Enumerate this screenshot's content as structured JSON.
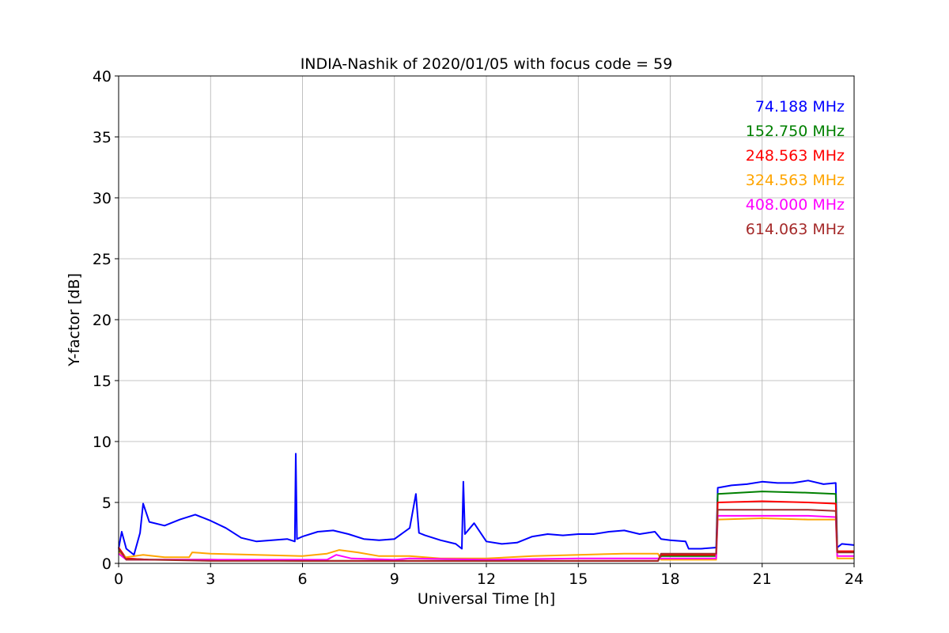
{
  "chart_data": {
    "type": "line",
    "title": "INDIA-Nashik of 2020/01/05 with focus code = 59",
    "xlabel": "Universal Time [h]",
    "ylabel": "Y-factor [dB]",
    "xlim": [
      0,
      24
    ],
    "ylim": [
      0,
      40
    ],
    "xticks": [
      0,
      3,
      6,
      9,
      12,
      15,
      18,
      21,
      24
    ],
    "yticks": [
      0,
      5,
      10,
      15,
      20,
      25,
      30,
      35,
      40
    ],
    "grid": true,
    "legend": "top-right",
    "series": [
      {
        "name": "74.188 MHz",
        "color": "#0000ff",
        "points": [
          [
            0,
            1.2
          ],
          [
            0.1,
            2.6
          ],
          [
            0.25,
            1.2
          ],
          [
            0.5,
            0.7
          ],
          [
            0.7,
            2.5
          ],
          [
            0.8,
            4.9
          ],
          [
            1.0,
            3.4
          ],
          [
            1.5,
            3.1
          ],
          [
            2.0,
            3.6
          ],
          [
            2.5,
            4.0
          ],
          [
            3.0,
            3.5
          ],
          [
            3.5,
            2.9
          ],
          [
            4.0,
            2.1
          ],
          [
            4.5,
            1.8
          ],
          [
            5.0,
            1.9
          ],
          [
            5.5,
            2.0
          ],
          [
            5.75,
            1.8
          ],
          [
            5.78,
            9.0
          ],
          [
            5.82,
            2.0
          ],
          [
            6.0,
            2.2
          ],
          [
            6.5,
            2.6
          ],
          [
            7.0,
            2.7
          ],
          [
            7.5,
            2.4
          ],
          [
            8.0,
            2.0
          ],
          [
            8.5,
            1.9
          ],
          [
            9.0,
            2.0
          ],
          [
            9.5,
            2.9
          ],
          [
            9.7,
            5.7
          ],
          [
            9.8,
            2.5
          ],
          [
            10.0,
            2.3
          ],
          [
            10.5,
            1.9
          ],
          [
            11.0,
            1.6
          ],
          [
            11.2,
            1.2
          ],
          [
            11.25,
            6.7
          ],
          [
            11.3,
            2.4
          ],
          [
            11.6,
            3.3
          ],
          [
            12.0,
            1.8
          ],
          [
            12.5,
            1.6
          ],
          [
            13.0,
            1.7
          ],
          [
            13.5,
            2.2
          ],
          [
            14.0,
            2.4
          ],
          [
            14.5,
            2.3
          ],
          [
            15.0,
            2.4
          ],
          [
            15.5,
            2.4
          ],
          [
            16.0,
            2.6
          ],
          [
            16.5,
            2.7
          ],
          [
            17.0,
            2.4
          ],
          [
            17.5,
            2.6
          ],
          [
            17.7,
            2.0
          ],
          [
            18.0,
            1.9
          ],
          [
            18.5,
            1.8
          ],
          [
            18.6,
            1.2
          ],
          [
            19.0,
            1.2
          ],
          [
            19.5,
            1.3
          ],
          [
            19.55,
            6.2
          ],
          [
            20.0,
            6.4
          ],
          [
            20.5,
            6.5
          ],
          [
            21.0,
            6.7
          ],
          [
            21.5,
            6.6
          ],
          [
            22.0,
            6.6
          ],
          [
            22.5,
            6.8
          ],
          [
            23.0,
            6.5
          ],
          [
            23.4,
            6.6
          ],
          [
            23.45,
            1.3
          ],
          [
            23.6,
            1.6
          ],
          [
            24.0,
            1.5
          ]
        ]
      },
      {
        "name": "152.750 MHz",
        "color": "#008000",
        "points": [
          [
            0,
            1.0
          ],
          [
            0.25,
            0.4
          ],
          [
            1.0,
            0.3
          ],
          [
            3.0,
            0.3
          ],
          [
            6.0,
            0.2
          ],
          [
            9.0,
            0.2
          ],
          [
            12.0,
            0.2
          ],
          [
            15.0,
            0.2
          ],
          [
            17.6,
            0.2
          ],
          [
            17.7,
            0.6
          ],
          [
            18.5,
            0.6
          ],
          [
            19.5,
            0.6
          ],
          [
            19.55,
            5.7
          ],
          [
            21.0,
            5.9
          ],
          [
            22.5,
            5.8
          ],
          [
            23.4,
            5.7
          ],
          [
            23.45,
            0.9
          ],
          [
            24.0,
            0.9
          ]
        ]
      },
      {
        "name": "248.563 MHz",
        "color": "#ff0000",
        "points": [
          [
            0,
            1.3
          ],
          [
            0.25,
            0.4
          ],
          [
            1.0,
            0.3
          ],
          [
            3.0,
            0.3
          ],
          [
            6.0,
            0.2
          ],
          [
            9.0,
            0.2
          ],
          [
            12.0,
            0.2
          ],
          [
            15.0,
            0.2
          ],
          [
            17.6,
            0.2
          ],
          [
            17.7,
            0.7
          ],
          [
            19.5,
            0.7
          ],
          [
            19.55,
            5.0
          ],
          [
            21.0,
            5.1
          ],
          [
            22.5,
            5.0
          ],
          [
            23.4,
            4.9
          ],
          [
            23.45,
            1.0
          ],
          [
            24.0,
            1.0
          ]
        ]
      },
      {
        "name": "324.563 MHz",
        "color": "#ffa500",
        "points": [
          [
            0,
            0.9
          ],
          [
            0.25,
            0.5
          ],
          [
            0.8,
            0.7
          ],
          [
            1.5,
            0.5
          ],
          [
            2.3,
            0.5
          ],
          [
            2.4,
            0.9
          ],
          [
            3.0,
            0.8
          ],
          [
            4.5,
            0.7
          ],
          [
            6.0,
            0.6
          ],
          [
            6.8,
            0.8
          ],
          [
            7.2,
            1.1
          ],
          [
            7.8,
            0.9
          ],
          [
            8.5,
            0.6
          ],
          [
            9.5,
            0.6
          ],
          [
            10.5,
            0.4
          ],
          [
            12.0,
            0.4
          ],
          [
            13.5,
            0.6
          ],
          [
            15.0,
            0.7
          ],
          [
            16.5,
            0.8
          ],
          [
            17.6,
            0.8
          ],
          [
            17.7,
            0.3
          ],
          [
            19.5,
            0.3
          ],
          [
            19.55,
            3.6
          ],
          [
            21.0,
            3.7
          ],
          [
            22.5,
            3.6
          ],
          [
            23.4,
            3.6
          ],
          [
            23.45,
            0.4
          ],
          [
            24.0,
            0.4
          ]
        ]
      },
      {
        "name": "408.000 MHz",
        "color": "#ff00ff",
        "points": [
          [
            0,
            0.8
          ],
          [
            0.25,
            0.3
          ],
          [
            1.0,
            0.3
          ],
          [
            3.0,
            0.3
          ],
          [
            6.0,
            0.3
          ],
          [
            6.8,
            0.3
          ],
          [
            7.1,
            0.7
          ],
          [
            7.6,
            0.4
          ],
          [
            9.0,
            0.3
          ],
          [
            9.5,
            0.4
          ],
          [
            12.0,
            0.3
          ],
          [
            15.0,
            0.4
          ],
          [
            17.6,
            0.4
          ],
          [
            17.7,
            0.4
          ],
          [
            19.5,
            0.4
          ],
          [
            19.55,
            3.9
          ],
          [
            21.0,
            3.9
          ],
          [
            22.5,
            3.9
          ],
          [
            23.4,
            3.8
          ],
          [
            23.45,
            0.6
          ],
          [
            24.0,
            0.6
          ]
        ]
      },
      {
        "name": "614.063 MHz",
        "color": "#a52a2a",
        "points": [
          [
            0,
            1.2
          ],
          [
            0.25,
            0.3
          ],
          [
            1.0,
            0.3
          ],
          [
            3.0,
            0.2
          ],
          [
            6.0,
            0.2
          ],
          [
            9.0,
            0.2
          ],
          [
            12.0,
            0.2
          ],
          [
            15.0,
            0.2
          ],
          [
            17.6,
            0.2
          ],
          [
            17.7,
            0.8
          ],
          [
            19.5,
            0.8
          ],
          [
            19.55,
            4.4
          ],
          [
            21.0,
            4.4
          ],
          [
            22.5,
            4.4
          ],
          [
            23.4,
            4.3
          ],
          [
            23.45,
            0.9
          ],
          [
            24.0,
            0.9
          ]
        ]
      }
    ]
  }
}
